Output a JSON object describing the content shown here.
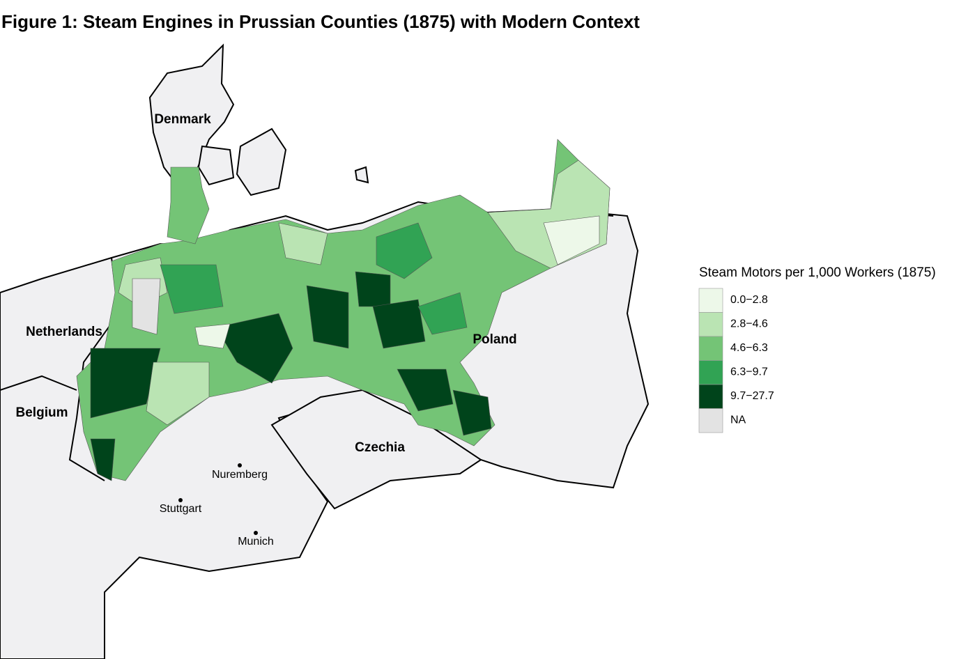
{
  "title": "Figure 1: Steam Engines in Prussian Counties (1875) with Modern Context",
  "legend": {
    "title": "Steam Motors per 1,000 Workers (1875)",
    "items": [
      {
        "label": "0.0−2.8",
        "color": "#edf8e9"
      },
      {
        "label": "2.8−4.6",
        "color": "#bae4b3"
      },
      {
        "label": "4.6−6.3",
        "color": "#74c476"
      },
      {
        "label": "6.3−9.7",
        "color": "#31a354"
      },
      {
        "label": "9.7−27.7",
        "color": "#00441b"
      },
      {
        "label": "NA",
        "color": "#e3e3e3"
      }
    ]
  },
  "countries": [
    "Denmark",
    "Netherlands",
    "Belgium",
    "Poland",
    "Czechia"
  ],
  "cities": [
    "Nuremberg",
    "Stuttgart",
    "Munich"
  ]
}
